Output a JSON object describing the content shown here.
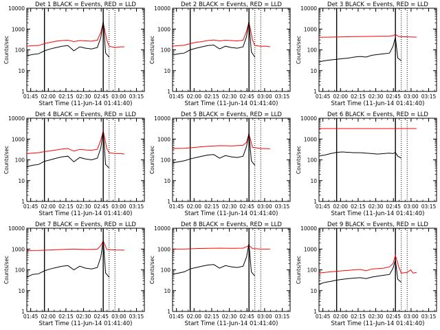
{
  "panel_titles": [
    "Det 1 BLACK = Events, RED = LLD",
    "Det 2 BLACK = Events, RED = LLD",
    "Det 3 BLACK = Events, RED = LLD",
    "Det 4 BLACK = Events, RED = LLD",
    "Det 5 BLACK = Events, RED = LLD",
    "Det 6 BLACK = Events, RED = LLD",
    "Det 7 BLACK = Events, RED = LLD",
    "Det 8 BLACK = Events, RED = LLD",
    "Det 9 BLACK = Events, RED = LLD"
  ],
  "ylabel": "Counts/sec",
  "xlabel": "Start Time (11-Jun-14 01:41:40)",
  "x_ticks": [
    "01:45",
    "02:00",
    "02:15",
    "02:30",
    "02:45",
    "03:00",
    "03:15"
  ],
  "y_ticks": [
    "1",
    "10",
    "100",
    "1000",
    "10000"
  ],
  "colors": {
    "events": "#000000",
    "lld": "#ff0000",
    "frame": "#000000"
  },
  "chart_data": [
    {
      "type": "line",
      "title": "Det 1 BLACK = Events, RED = LLD",
      "xlabel": "Start Time (11-Jun-14 01:41:40)",
      "ylabel": "Counts/sec",
      "x_range_min": [
        0,
        100
      ],
      "y_log_range": [
        1,
        10000
      ],
      "y_scale": "log",
      "vlines_solid_min": [
        15,
        65
      ],
      "vlines_dotted_min": [
        70,
        75
      ],
      "series": [
        {
          "color": "red",
          "x_min": [
            -2,
            0,
            5,
            10,
            15,
            20,
            25,
            30,
            35,
            40,
            45,
            50,
            55,
            60,
            63,
            65,
            68,
            70,
            75,
            80,
            83
          ],
          "values": [
            150,
            150,
            160,
            160,
            200,
            230,
            260,
            280,
            290,
            250,
            280,
            270,
            260,
            290,
            700,
            2000,
            300,
            150,
            130,
            140,
            140
          ]
        },
        {
          "color": "black",
          "x_min": [
            0,
            2,
            5,
            10,
            15,
            20,
            25,
            30,
            35,
            40,
            45,
            50,
            55,
            60,
            63,
            65,
            67,
            70
          ],
          "values": [
            50,
            55,
            60,
            65,
            90,
            110,
            130,
            150,
            160,
            90,
            140,
            120,
            110,
            130,
            400,
            2500,
            70,
            45
          ]
        }
      ]
    },
    {
      "type": "line",
      "title": "Det 2 BLACK = Events, RED = LLD",
      "xlabel": "Start Time (11-Jun-14 01:41:40)",
      "ylabel": "Counts/sec",
      "x_range_min": [
        0,
        100
      ],
      "y_log_range": [
        1,
        10000
      ],
      "y_scale": "log",
      "vlines_solid_min": [
        15,
        65
      ],
      "vlines_dotted_min": [
        70,
        75
      ],
      "series": [
        {
          "color": "red",
          "x_min": [
            -2,
            0,
            5,
            10,
            15,
            20,
            25,
            30,
            35,
            40,
            45,
            50,
            55,
            60,
            63,
            65,
            68,
            70,
            75,
            80,
            83
          ],
          "values": [
            150,
            150,
            160,
            165,
            200,
            230,
            250,
            280,
            300,
            270,
            290,
            280,
            270,
            290,
            800,
            2200,
            300,
            160,
            150,
            150,
            140
          ]
        },
        {
          "color": "black",
          "x_min": [
            0,
            2,
            5,
            10,
            15,
            20,
            25,
            30,
            35,
            40,
            45,
            50,
            55,
            60,
            63,
            65,
            67,
            70
          ],
          "values": [
            60,
            60,
            65,
            70,
            100,
            120,
            140,
            160,
            170,
            110,
            150,
            130,
            120,
            140,
            450,
            2400,
            80,
            45
          ]
        }
      ]
    },
    {
      "type": "line",
      "title": "Det 3 BLACK = Events, RED = LLD",
      "xlabel": "Start Time (11-Jun-14 01:41:40)",
      "ylabel": "Counts/sec",
      "x_range_min": [
        0,
        100
      ],
      "y_log_range": [
        1,
        10000
      ],
      "y_scale": "log",
      "vlines_solid_min": [
        15,
        65
      ],
      "vlines_dotted_min": [
        70,
        75
      ],
      "series": [
        {
          "color": "red",
          "x_min": [
            -2,
            0,
            10,
            20,
            30,
            40,
            50,
            60,
            63,
            65,
            68,
            75,
            83
          ],
          "values": [
            400,
            400,
            410,
            420,
            430,
            440,
            450,
            460,
            480,
            550,
            430,
            420,
            410
          ]
        },
        {
          "color": "black",
          "x_min": [
            0,
            2,
            5,
            10,
            15,
            20,
            25,
            30,
            35,
            40,
            45,
            50,
            55,
            60,
            63,
            65,
            67,
            70
          ],
          "values": [
            25,
            28,
            30,
            33,
            35,
            38,
            40,
            45,
            48,
            45,
            55,
            60,
            65,
            70,
            150,
            400,
            40,
            30
          ]
        }
      ]
    },
    {
      "type": "line",
      "title": "Det 4 BLACK = Events, RED = LLD",
      "xlabel": "Start Time (11-Jun-14 01:41:40)",
      "ylabel": "Counts/sec",
      "x_range_min": [
        0,
        100
      ],
      "y_log_range": [
        1,
        10000
      ],
      "y_scale": "log",
      "vlines_solid_min": [
        15,
        65
      ],
      "vlines_dotted_min": [
        70,
        75
      ],
      "series": [
        {
          "color": "red",
          "x_min": [
            -2,
            0,
            5,
            10,
            15,
            20,
            25,
            30,
            35,
            40,
            45,
            50,
            55,
            60,
            63,
            65,
            68,
            70,
            75,
            80,
            83
          ],
          "values": [
            200,
            200,
            210,
            220,
            250,
            270,
            300,
            330,
            350,
            260,
            320,
            300,
            290,
            320,
            900,
            2500,
            350,
            220,
            200,
            200,
            190
          ]
        },
        {
          "color": "black",
          "x_min": [
            0,
            2,
            5,
            10,
            15,
            20,
            25,
            30,
            35,
            40,
            45,
            50,
            55,
            60,
            63,
            65,
            67,
            70
          ],
          "values": [
            45,
            50,
            55,
            60,
            85,
            100,
            120,
            140,
            150,
            80,
            130,
            110,
            100,
            120,
            380,
            2400,
            60,
            40
          ]
        }
      ]
    },
    {
      "type": "line",
      "title": "Det 5 BLACK = Events, RED = LLD",
      "xlabel": "Start Time (11-Jun-14 01:41:40)",
      "ylabel": "Counts/sec",
      "x_range_min": [
        0,
        100
      ],
      "y_log_range": [
        1,
        10000
      ],
      "y_scale": "log",
      "vlines_solid_min": [
        15,
        65
      ],
      "vlines_dotted_min": [
        70,
        75
      ],
      "series": [
        {
          "color": "red",
          "x_min": [
            -2,
            0,
            10,
            20,
            30,
            40,
            50,
            60,
            63,
            65,
            68,
            75,
            83
          ],
          "values": [
            350,
            350,
            360,
            400,
            450,
            480,
            470,
            500,
            700,
            1800,
            400,
            350,
            340
          ]
        },
        {
          "color": "black",
          "x_min": [
            0,
            2,
            5,
            10,
            15,
            20,
            25,
            30,
            35,
            40,
            45,
            50,
            55,
            60,
            63,
            65,
            67,
            70
          ],
          "values": [
            70,
            75,
            80,
            90,
            110,
            130,
            150,
            170,
            180,
            120,
            160,
            140,
            130,
            150,
            450,
            2000,
            90,
            55
          ]
        }
      ]
    },
    {
      "type": "line",
      "title": "Det 6 BLACK = Events, RED = LLD",
      "xlabel": "Start Time (11-Jun-14 01:41:40)",
      "ylabel": "Counts/sec",
      "x_range_min": [
        0,
        100
      ],
      "y_log_range": [
        1,
        10000
      ],
      "y_scale": "log",
      "vlines_solid_min": [
        15,
        65
      ],
      "vlines_dotted_min": [
        70,
        75
      ],
      "series": [
        {
          "color": "red",
          "x_min": [
            -2,
            0,
            20,
            40,
            60,
            65,
            83
          ],
          "values": [
            3200,
            3200,
            3200,
            3200,
            3200,
            3200,
            3200
          ]
        },
        {
          "color": "black",
          "x_min": [
            0,
            2,
            5,
            10,
            15,
            20,
            25,
            30,
            35,
            40,
            45,
            50,
            55,
            60,
            63,
            65,
            67,
            70
          ],
          "values": [
            150,
            160,
            170,
            200,
            230,
            240,
            230,
            220,
            220,
            210,
            200,
            190,
            200,
            210,
            200,
            230,
            150,
            120
          ]
        }
      ]
    },
    {
      "type": "line",
      "title": "Det 7 BLACK = Events, RED = LLD",
      "xlabel": "Start Time (11-Jun-14 01:41:40)",
      "ylabel": "Counts/sec",
      "x_range_min": [
        0,
        100
      ],
      "y_log_range": [
        1,
        10000
      ],
      "y_scale": "log",
      "vlines_solid_min": [
        15,
        65
      ],
      "vlines_dotted_min": [
        70,
        75
      ],
      "series": [
        {
          "color": "red",
          "x_min": [
            -2,
            0,
            10,
            20,
            30,
            40,
            50,
            60,
            63,
            65,
            68,
            75,
            83
          ],
          "values": [
            850,
            850,
            860,
            900,
            950,
            1000,
            950,
            980,
            1500,
            2500,
            950,
            900,
            880
          ]
        },
        {
          "color": "black",
          "x_min": [
            0,
            2,
            5,
            10,
            15,
            20,
            25,
            30,
            35,
            40,
            45,
            50,
            55,
            60,
            63,
            65,
            67,
            70
          ],
          "values": [
            45,
            50,
            60,
            65,
            90,
            110,
            130,
            150,
            160,
            100,
            150,
            120,
            110,
            130,
            420,
            2700,
            70,
            45
          ]
        }
      ]
    },
    {
      "type": "line",
      "title": "Det 8 BLACK = Events, RED = LLD",
      "xlabel": "Start Time (11-Jun-14 01:41:40)",
      "ylabel": "Counts/sec",
      "x_range_min": [
        0,
        100
      ],
      "y_log_range": [
        1,
        10000
      ],
      "y_scale": "log",
      "vlines_solid_min": [
        15,
        65
      ],
      "vlines_dotted_min": [
        70,
        75
      ],
      "series": [
        {
          "color": "red",
          "x_min": [
            -2,
            0,
            10,
            20,
            30,
            40,
            50,
            60,
            63,
            65,
            68,
            75,
            83
          ],
          "values": [
            1000,
            1000,
            1000,
            1050,
            1080,
            1100,
            1080,
            1100,
            1300,
            1500,
            1050,
            1000,
            1000
          ]
        },
        {
          "color": "black",
          "x_min": [
            0,
            2,
            5,
            10,
            15,
            20,
            25,
            30,
            35,
            40,
            45,
            50,
            55,
            60,
            63,
            65,
            67,
            70
          ],
          "values": [
            60,
            65,
            70,
            80,
            110,
            130,
            150,
            170,
            180,
            120,
            160,
            140,
            130,
            150,
            420,
            1900,
            80,
            50
          ]
        }
      ]
    },
    {
      "type": "line",
      "title": "Det 9 BLACK = Events, RED = LLD",
      "xlabel": "Start Time (11-Jun-14 01:41:40)",
      "ylabel": "Counts/sec",
      "x_range_min": [
        0,
        100
      ],
      "y_log_range": [
        1,
        10000
      ],
      "y_scale": "log",
      "vlines_solid_min": [
        15,
        65
      ],
      "vlines_dotted_min": [
        70,
        75
      ],
      "series": [
        {
          "color": "red",
          "x_min": [
            -2,
            0,
            5,
            10,
            15,
            20,
            25,
            30,
            35,
            40,
            45,
            50,
            55,
            60,
            63,
            65,
            68,
            70,
            75,
            78,
            80,
            83
          ],
          "values": [
            70,
            70,
            75,
            80,
            85,
            90,
            95,
            100,
            105,
            90,
            110,
            115,
            120,
            140,
            200,
            500,
            130,
            70,
            75,
            100,
            70,
            75
          ]
        },
        {
          "color": "black",
          "x_min": [
            0,
            2,
            5,
            10,
            15,
            20,
            25,
            30,
            35,
            40,
            45,
            50,
            55,
            60,
            63,
            65,
            67,
            70
          ],
          "values": [
            20,
            22,
            25,
            28,
            32,
            35,
            38,
            40,
            42,
            38,
            45,
            50,
            55,
            60,
            120,
            300,
            35,
            25
          ]
        }
      ]
    }
  ]
}
